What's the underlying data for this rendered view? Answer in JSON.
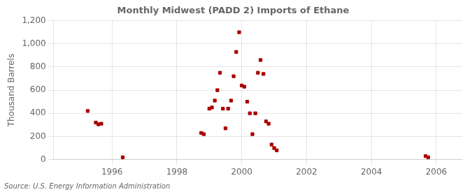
{
  "chart_data": {
    "type": "scatter",
    "title": "Monthly Midwest (PADD 2) Imports of Ethane",
    "ylabel": "Thousand Barrels",
    "source": "Source: U.S. Energy Information Administration",
    "color": "#aa0000",
    "marker": "square",
    "grid": true,
    "xlim": [
      1994.2,
      2006.8
    ],
    "xticks": [
      1996,
      1998,
      2000,
      2002,
      2004,
      2006
    ],
    "ylim": [
      0,
      1200
    ],
    "yticks": [
      0,
      200,
      400,
      600,
      800,
      {
        "value": 1000,
        "label": "1,000"
      },
      {
        "value": 1200,
        "label": "1,200"
      }
    ],
    "x": [
      1995.25,
      1995.5,
      1995.58,
      1995.67,
      1996.33,
      1998.75,
      1998.83,
      1999.0,
      1999.08,
      1999.17,
      1999.25,
      1999.33,
      1999.42,
      1999.5,
      1999.58,
      1999.67,
      1999.75,
      1999.83,
      1999.92,
      2000.0,
      2000.08,
      2000.17,
      2000.25,
      2000.33,
      2000.42,
      2000.5,
      2000.58,
      2000.67,
      2000.75,
      2000.83,
      2000.92,
      2001.0,
      2001.08,
      2005.67,
      2005.75
    ],
    "values": [
      420,
      320,
      305,
      310,
      20,
      230,
      220,
      440,
      450,
      510,
      600,
      750,
      440,
      270,
      440,
      510,
      720,
      930,
      1100,
      640,
      630,
      500,
      400,
      220,
      400,
      750,
      860,
      740,
      330,
      310,
      130,
      100,
      80,
      30,
      20
    ]
  }
}
